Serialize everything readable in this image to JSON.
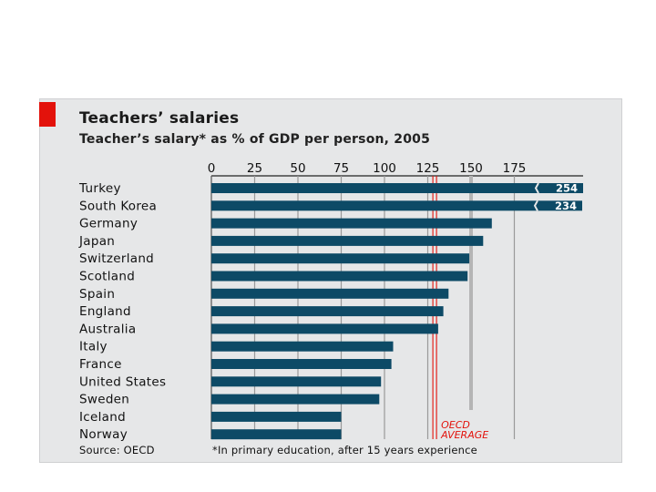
{
  "chart_data": {
    "type": "bar",
    "orientation": "horizontal",
    "title": "Teachers’ salaries",
    "subtitle": "Teacher’s salary* as % of GDP per person, 2005",
    "categories": [
      "Turkey",
      "South Korea",
      "Germany",
      "Japan",
      "Switzerland",
      "Scotland",
      "Spain",
      "England",
      "Australia",
      "Italy",
      "France",
      "United States",
      "Sweden",
      "Iceland",
      "Norway"
    ],
    "values": [
      254,
      234,
      162,
      157,
      149,
      148,
      137,
      134,
      131,
      105,
      104,
      98,
      97,
      75,
      75
    ],
    "value_labels": [
      "254",
      "234",
      "",
      "",
      "",
      "",
      "",
      "",
      "",
      "",
      "",
      "",
      "",
      "",
      ""
    ],
    "xticks": [
      0,
      25,
      50,
      75,
      100,
      125,
      150,
      175
    ],
    "xlim": [
      0,
      200
    ],
    "axis_break": true,
    "reference_line": {
      "value": 129,
      "label_top": "OECD",
      "label_bottom": "AVERAGE",
      "color": "#e3120b"
    },
    "grid": true,
    "bar_color": "#0d4a66",
    "source": "Source: OECD",
    "footnote": "*In primary education, after 15 years experience"
  }
}
